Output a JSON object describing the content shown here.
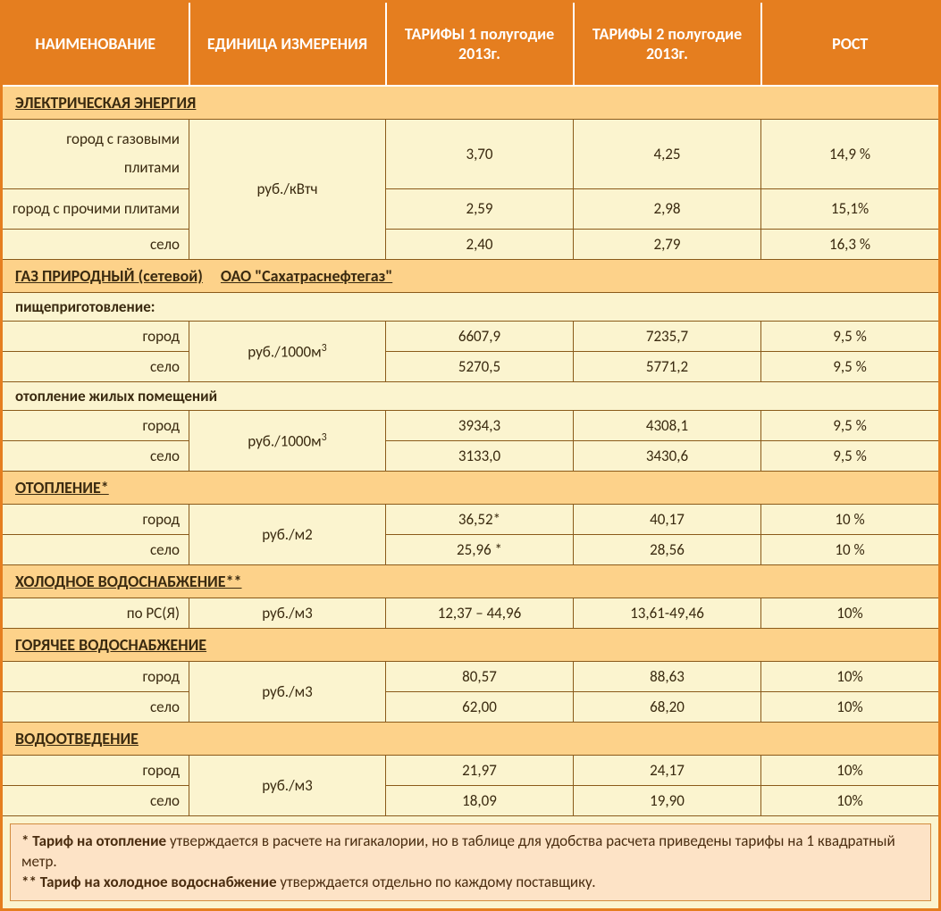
{
  "colors": {
    "header_bg": "#e57e1f",
    "header_text": "#ffffff",
    "band_bg": "#fdd28a",
    "cell_bg": "#fbf4cf",
    "border": "#8a5a1a",
    "notes_bg": "#fde3c6",
    "notes_border": "#d28b3e",
    "text": "#3a2a10"
  },
  "headers": {
    "name": "НАИМЕНОВАНИЕ",
    "unit": "ЕДИНИЦА ИЗМЕРЕНИЯ",
    "tariff1": "ТАРИФЫ 1 полугодие  2013г.",
    "tariff2": "ТАРИФЫ 2 полугодие  2013г.",
    "growth": "РОСТ"
  },
  "sections": {
    "electricity": {
      "title": "ЭЛЕКТРИЧЕСКАЯ  ЭНЕРГИЯ",
      "unit": "руб./кВтч",
      "rows": [
        {
          "name": "город с газовыми плитами",
          "t1": "3,70",
          "t2": "4,25",
          "g": "14,9 %"
        },
        {
          "name": "город с прочими плитами",
          "t1": "2,59",
          "t2": "2,98",
          "g": "15,1%"
        },
        {
          "name": "село",
          "t1": "2,40",
          "t2": "2,79",
          "g": "16,3 %"
        }
      ]
    },
    "gas": {
      "title": "ГАЗ  ПРИРОДНЫЙ   (сетевой)",
      "title_extra": "ОАО  \"Сахатраснефтегаз\"",
      "sub1": {
        "label": "пищеприготовление:",
        "unit": "руб./1000м",
        "unit_sup": "3",
        "rows": [
          {
            "name": "город",
            "t1": "6607,9",
            "t2": "7235,7",
            "g": "9,5 %"
          },
          {
            "name": "село",
            "t1": "5270,5",
            "t2": "5771,2",
            "g": "9,5 %"
          }
        ]
      },
      "sub2": {
        "label": "отопление  жилых  помещений",
        "unit": "руб./1000м",
        "unit_sup": "3",
        "rows": [
          {
            "name": "город",
            "t1": "3934,3",
            "t2": "4308,1",
            "g": "9,5 %"
          },
          {
            "name": "село",
            "t1": "3133,0",
            "t2": "3430,6",
            "g": "9,5 %"
          }
        ]
      }
    },
    "heating": {
      "title": "ОТОПЛЕНИЕ*",
      "unit": "руб./м2",
      "rows": [
        {
          "name": "город",
          "t1": "36,52*",
          "t2": "40,17",
          "g": "10 %"
        },
        {
          "name": "село",
          "t1": "25,96 *",
          "t2": "28,56",
          "g": "10 %"
        }
      ]
    },
    "coldwater": {
      "title": "ХОЛОДНОЕ  ВОДОСНАБЖЕНИЕ**",
      "unit": "руб./м3",
      "rows": [
        {
          "name": "по РС(Я)",
          "t1": "12,37 – 44,96",
          "t2": "13,61-49,46",
          "g": "10%"
        }
      ]
    },
    "hotwater": {
      "title": "ГОРЯЧЕЕ  ВОДОСНАБЖЕНИЕ",
      "unit": "руб./м3",
      "rows": [
        {
          "name": "город",
          "t1": "80,57",
          "t2": "88,63",
          "g": "10%"
        },
        {
          "name": "село",
          "t1": "62,00",
          "t2": "68,20",
          "g": "10%"
        }
      ]
    },
    "sewage": {
      "title": "ВОДООТВЕДЕНИЕ",
      "unit": "руб./м3",
      "rows": [
        {
          "name": "город",
          "t1": "21,97",
          "t2": "24,17",
          "g": "10%"
        },
        {
          "name": "село",
          "t1": "18,09",
          "t2": "19,90",
          "g": "10%"
        }
      ]
    }
  },
  "notes": {
    "n1_bold": "* Тариф на отопление",
    "n1_rest": " утверждается в расчете на гигакалории, но в таблице для удобства расчета приведены тарифы на 1 квадратный метр.",
    "n2_bold": "** Тариф на холодное водоснабжение",
    "n2_rest": " утверждается отдельно по каждому поставщику."
  }
}
